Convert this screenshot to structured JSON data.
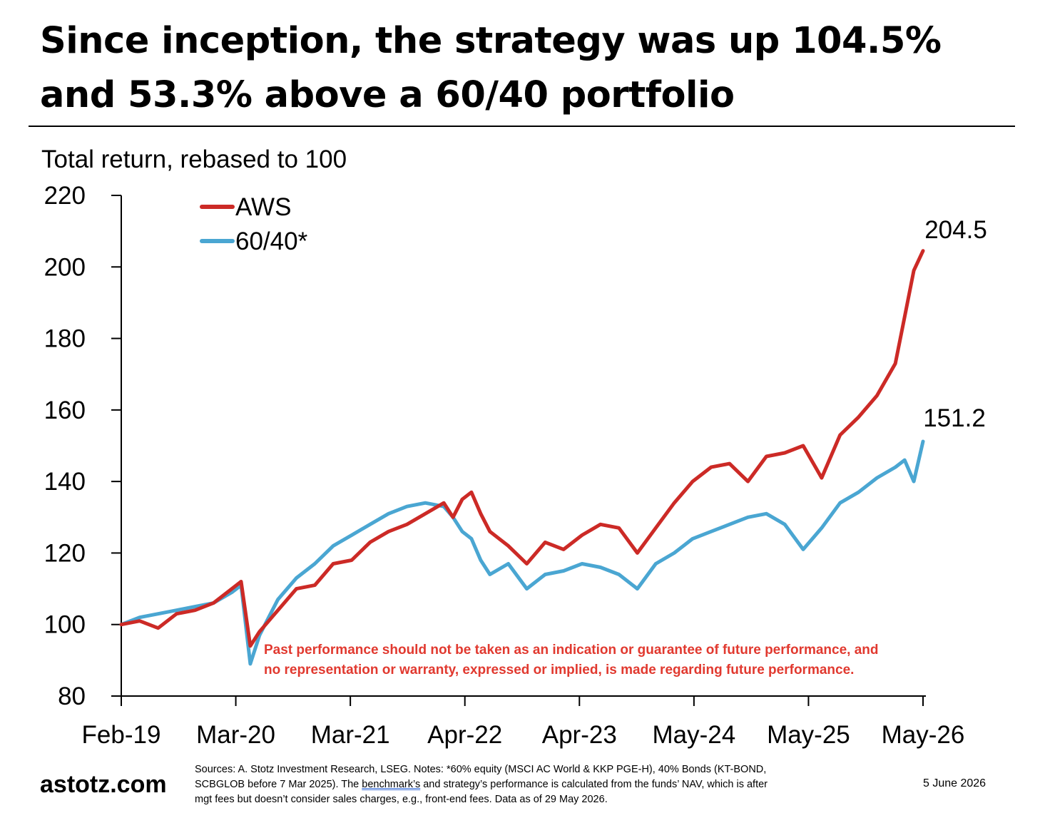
{
  "title_lines": [
    "Since inception, the strategy was up 104.5%",
    "and 53.3% above a 60/40 portfolio"
  ],
  "disclaimer_lines": [
    "Past performance should not be taken as an indication or guarantee of future performance, and",
    "no representation or warranty, expressed or implied, is made regarding future performance."
  ],
  "footer": {
    "brand": "astotz.com",
    "date": "5 June 2026",
    "sources_line1": "Sources: A. Stotz Investment Research, LSEG. Notes: *60% equity (MSCI AC World & KKP PGE-H), 40% Bonds (KT-BOND,",
    "sources_line2_pre": "SCBGLOB before 7 Mar 2025). The ",
    "sources_line2_link": "benchmark’s",
    "sources_line2_post": " and strategy’s performance is calculated from the funds’ NAV, which is after",
    "sources_line3": "mgt fees but doesn’t consider sales charges, e.g., front-end fees. Data as of 29 May 2026."
  },
  "colors": {
    "aws": "#cc2a26",
    "benchmark": "#4aa6d2",
    "disclaimer": "#e1392f"
  },
  "chart_data": {
    "type": "line",
    "title": "Since inception, the strategy was up 104.5% and 53.3% above a 60/40 portfolio",
    "subtitle": "Total return, rebased to 100",
    "xlabel": "",
    "ylabel": "",
    "ylim": [
      80,
      220
    ],
    "yticks": [
      80,
      100,
      120,
      140,
      160,
      180,
      200,
      220
    ],
    "x_tick_labels": [
      "Feb-19",
      "Mar-20",
      "Mar-21",
      "Apr-22",
      "Apr-23",
      "May-24",
      "May-25",
      "May-26"
    ],
    "x_start": "2019-02",
    "x_end": "2026-05",
    "legend_position": "top-left",
    "grid": false,
    "end_labels": [
      "204.5",
      "151.2"
    ],
    "series": [
      {
        "name": "AWS",
        "x": [
          "2019-02",
          "2019-04",
          "2019-06",
          "2019-08",
          "2019-10",
          "2019-12",
          "2020-02",
          "2020-03",
          "2020-04",
          "2020-05",
          "2020-07",
          "2020-09",
          "2020-11",
          "2021-01",
          "2021-03",
          "2021-05",
          "2021-07",
          "2021-09",
          "2021-11",
          "2022-01",
          "2022-02",
          "2022-03",
          "2022-04",
          "2022-05",
          "2022-06",
          "2022-08",
          "2022-10",
          "2022-12",
          "2023-02",
          "2023-04",
          "2023-06",
          "2023-08",
          "2023-10",
          "2023-12",
          "2024-02",
          "2024-04",
          "2024-06",
          "2024-08",
          "2024-10",
          "2024-12",
          "2025-02",
          "2025-04",
          "2025-06",
          "2025-08",
          "2025-10",
          "2025-12",
          "2026-02",
          "2026-03",
          "2026-04",
          "2026-05"
        ],
        "values": [
          100,
          101,
          99,
          103,
          104,
          106,
          110,
          112,
          94,
          98,
          104,
          110,
          111,
          117,
          118,
          123,
          126,
          128,
          131,
          134,
          130,
          135,
          137,
          131,
          126,
          122,
          117,
          123,
          121,
          125,
          128,
          127,
          120,
          127,
          134,
          140,
          144,
          145,
          140,
          147,
          148,
          150,
          141,
          153,
          158,
          164,
          173,
          186,
          199,
          204.5
        ]
      },
      {
        "name": "60/40*",
        "x": [
          "2019-02",
          "2019-04",
          "2019-06",
          "2019-08",
          "2019-10",
          "2019-12",
          "2020-02",
          "2020-03",
          "2020-04",
          "2020-05",
          "2020-07",
          "2020-09",
          "2020-11",
          "2021-01",
          "2021-03",
          "2021-05",
          "2021-07",
          "2021-09",
          "2021-11",
          "2022-01",
          "2022-02",
          "2022-03",
          "2022-04",
          "2022-05",
          "2022-06",
          "2022-08",
          "2022-10",
          "2022-12",
          "2023-02",
          "2023-04",
          "2023-06",
          "2023-08",
          "2023-10",
          "2023-12",
          "2024-02",
          "2024-04",
          "2024-06",
          "2024-08",
          "2024-10",
          "2024-12",
          "2025-02",
          "2025-04",
          "2025-06",
          "2025-08",
          "2025-10",
          "2025-12",
          "2026-02",
          "2026-03",
          "2026-04",
          "2026-05"
        ],
        "values": [
          100,
          102,
          103,
          104,
          105,
          106,
          109,
          111,
          89,
          97,
          107,
          113,
          117,
          122,
          125,
          128,
          131,
          133,
          134,
          133,
          130,
          126,
          124,
          118,
          114,
          117,
          110,
          114,
          115,
          117,
          116,
          114,
          110,
          117,
          120,
          124,
          126,
          128,
          130,
          131,
          128,
          121,
          127,
          134,
          137,
          141,
          144,
          146,
          140,
          151.2
        ]
      }
    ]
  }
}
